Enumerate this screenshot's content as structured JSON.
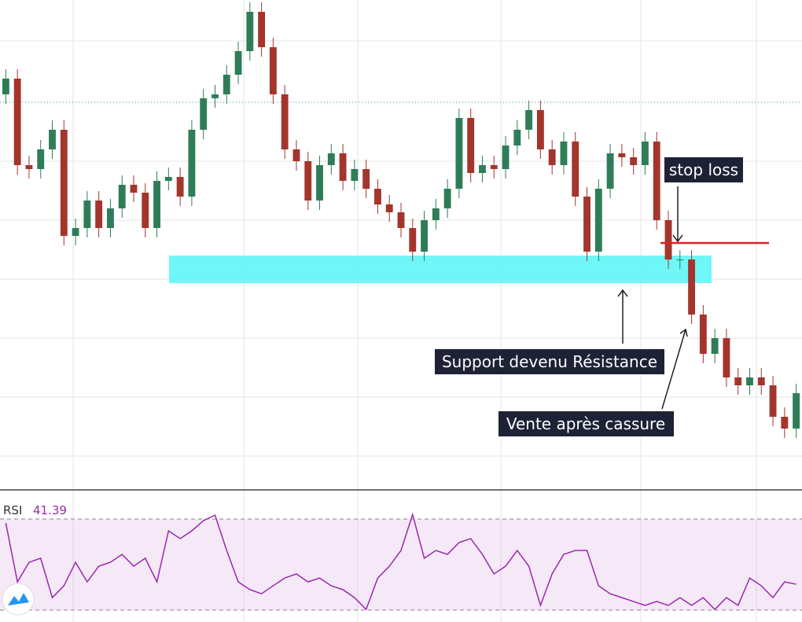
{
  "chart_data": {
    "type": "candlestick",
    "up_color": "#2f7d58",
    "down_color": "#a3352d",
    "ylim": [
      179,
      800
    ],
    "open": [
      680,
      700,
      590,
      585,
      610,
      635,
      500,
      510,
      545,
      510,
      535,
      565,
      555,
      510,
      570,
      575,
      550,
      635,
      675,
      680,
      705,
      735,
      785,
      740,
      680,
      610,
      595,
      545,
      590,
      605,
      570,
      585,
      560,
      540,
      530,
      510,
      480,
      520,
      535,
      560,
      650,
      580,
      590,
      585,
      615,
      635,
      660,
      610,
      590,
      620,
      550,
      480,
      560,
      605,
      600,
      590,
      620,
      520,
      470,
      470,
      400,
      350,
      370,
      320,
      310,
      320,
      310,
      270,
      255
    ],
    "high": [
      712,
      712,
      602,
      622,
      647,
      647,
      522,
      557,
      557,
      547,
      577,
      577,
      567,
      582,
      587,
      587,
      647,
      687,
      692,
      717,
      747,
      797,
      797,
      752,
      692,
      622,
      607,
      602,
      617,
      617,
      597,
      597,
      572,
      552,
      542,
      522,
      532,
      547,
      572,
      662,
      662,
      602,
      602,
      627,
      647,
      672,
      672,
      622,
      632,
      632,
      562,
      572,
      617,
      617,
      612,
      632,
      632,
      532,
      482,
      482,
      412,
      382,
      382,
      332,
      332,
      332,
      322,
      282,
      312
    ],
    "low": [
      668,
      578,
      573,
      573,
      598,
      488,
      488,
      498,
      498,
      498,
      523,
      543,
      498,
      498,
      558,
      538,
      538,
      623,
      663,
      668,
      693,
      723,
      728,
      668,
      598,
      583,
      533,
      533,
      578,
      558,
      558,
      548,
      528,
      518,
      498,
      468,
      468,
      508,
      523,
      548,
      568,
      568,
      573,
      573,
      603,
      623,
      598,
      578,
      578,
      538,
      468,
      468,
      548,
      588,
      578,
      578,
      508,
      458,
      458,
      388,
      338,
      338,
      308,
      298,
      298,
      298,
      258,
      243,
      243
    ],
    "close": [
      700,
      590,
      585,
      610,
      635,
      500,
      510,
      545,
      510,
      535,
      565,
      555,
      510,
      570,
      575,
      550,
      635,
      675,
      680,
      705,
      735,
      785,
      740,
      680,
      610,
      595,
      545,
      590,
      605,
      570,
      585,
      560,
      540,
      530,
      510,
      480,
      520,
      535,
      560,
      650,
      580,
      590,
      585,
      615,
      635,
      660,
      610,
      590,
      620,
      550,
      480,
      560,
      605,
      600,
      590,
      620,
      520,
      470,
      470,
      400,
      350,
      370,
      320,
      310,
      320,
      310,
      270,
      255,
      300
    ],
    "annotations": [
      "stop loss",
      "Support devenu Résistance",
      "Vente après cassure"
    ],
    "rsi": {
      "name": "RSI",
      "color": "#9c27b0",
      "ylim": [
        24.8,
        82.1
      ],
      "levels": [
        30,
        70
      ],
      "last_value": 41.39,
      "values": [
        68.3,
        42.4,
        51.0,
        52.8,
        35.5,
        40.7,
        51.0,
        42.4,
        49.3,
        51.0,
        54.5,
        49.3,
        52.8,
        42.4,
        64.8,
        61.4,
        64.8,
        69.3,
        71.7,
        56.2,
        42.4,
        39.0,
        37.2,
        40.7,
        44.1,
        45.9,
        42.4,
        44.1,
        40.7,
        39.0,
        35.5,
        30.3,
        44.1,
        49.3,
        56.2,
        72.0,
        52.8,
        56.2,
        54.5,
        59.7,
        61.4,
        54.5,
        45.9,
        49.3,
        56.2,
        49.3,
        32.1,
        45.9,
        54.5,
        56.2,
        56.2,
        40.7,
        37.2,
        35.5,
        33.8,
        32.1,
        33.8,
        32.1,
        35.5,
        32.1,
        35.5,
        30.3,
        35.5,
        32.1,
        44.1,
        40.7,
        35.5,
        42.4,
        41.39
      ]
    }
  }
}
